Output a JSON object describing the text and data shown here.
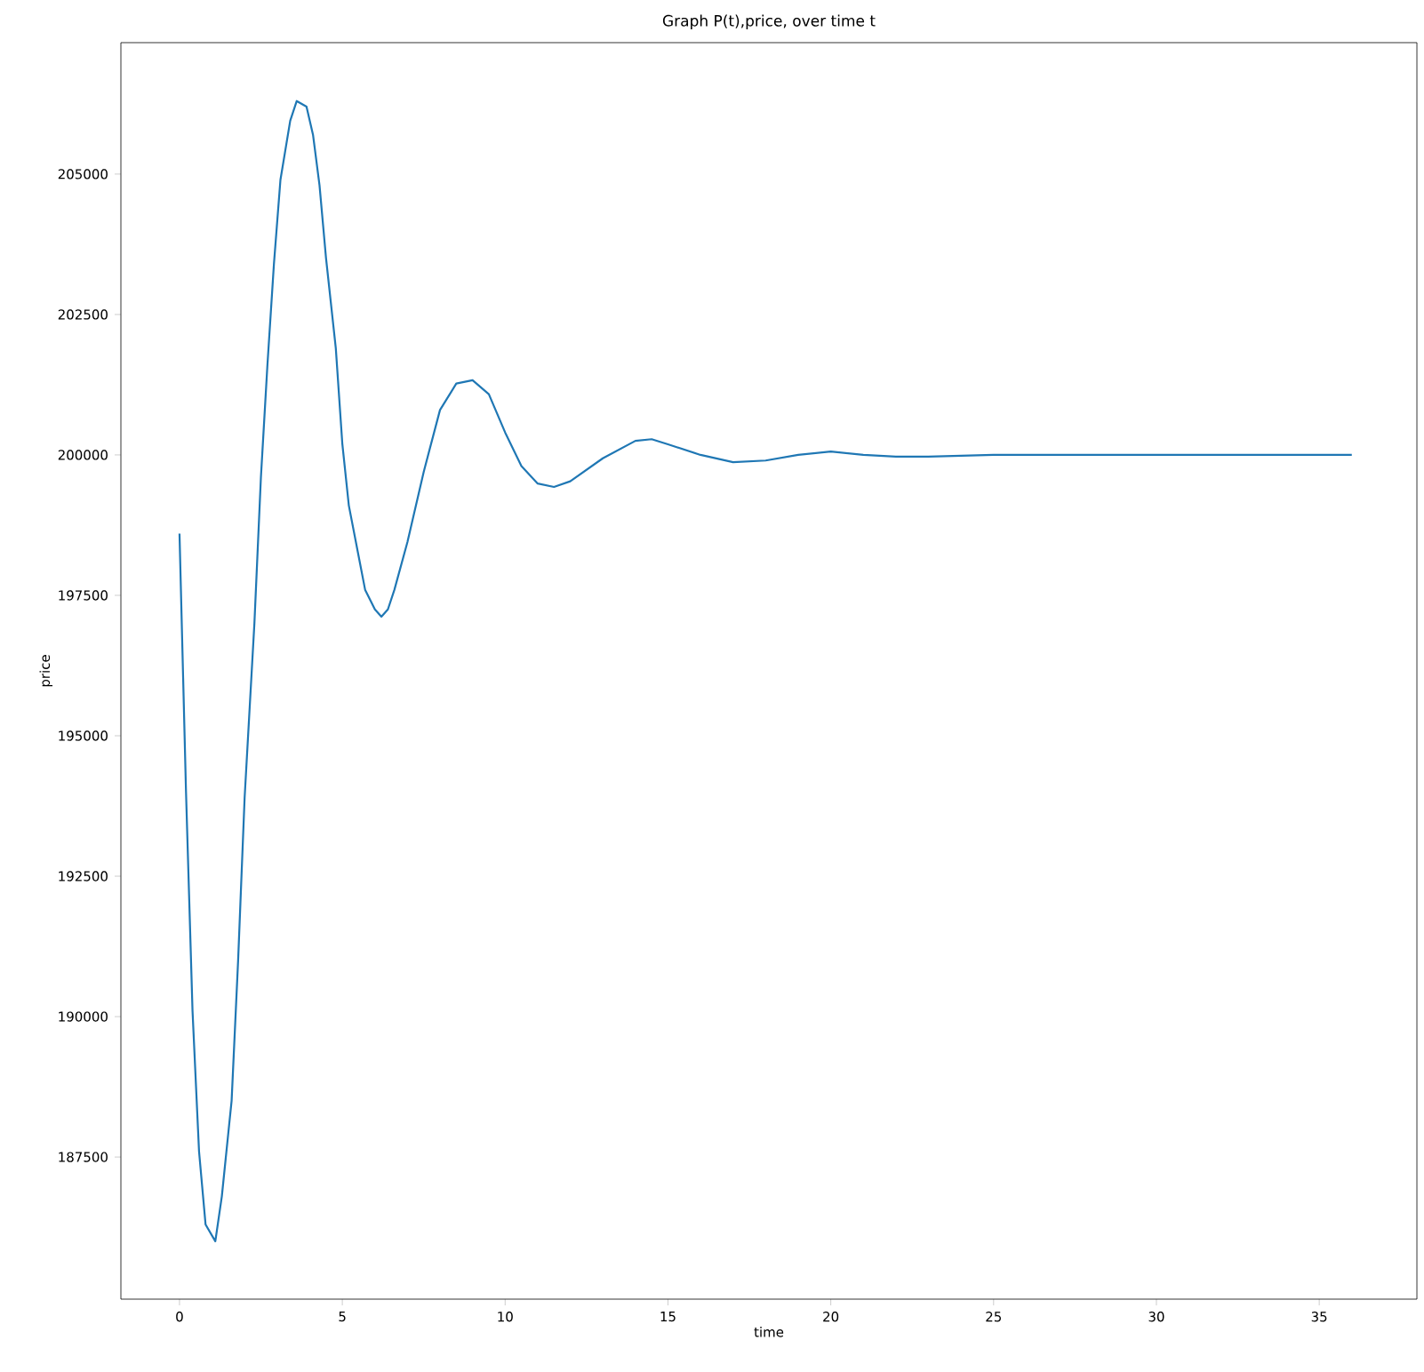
{
  "chart_data": {
    "type": "line",
    "title": "Graph P(t),price, over time t",
    "xlabel": "time",
    "ylabel": "price",
    "x": [
      0,
      0.2,
      0.4,
      0.6,
      0.8,
      1.1,
      1.3,
      1.6,
      1.8,
      2.0,
      2.3,
      2.5,
      2.7,
      2.9,
      3.1,
      3.4,
      3.6,
      3.9,
      4.1,
      4.3,
      4.5,
      4.8,
      5.0,
      5.2,
      5.5,
      5.7,
      6.0,
      6.2,
      6.4,
      6.6,
      7.0,
      7.5,
      8.0,
      8.5,
      9.0,
      9.5,
      10.0,
      10.5,
      11.0,
      11.5,
      12.0,
      13,
      14,
      14.5,
      15,
      16,
      17,
      18,
      19,
      20,
      21,
      22,
      23,
      25,
      27,
      30,
      36
    ],
    "series": [
      {
        "color": "#1f77b4",
        "values": [
          198600,
          194000,
          190100,
          187600,
          186300,
          186000,
          186800,
          188500,
          191000,
          193900,
          197000,
          199600,
          201600,
          203400,
          204900,
          205950,
          206300,
          206200,
          205700,
          204800,
          203500,
          201900,
          200200,
          199100,
          198200,
          197600,
          197250,
          197120,
          197250,
          197600,
          198450,
          199700,
          200800,
          201270,
          201330,
          201080,
          200400,
          199800,
          199490,
          199430,
          199530,
          199940,
          200250,
          200280,
          200190,
          200000,
          199870,
          199900,
          200000,
          200060,
          200000,
          199970,
          199970,
          200000,
          200000,
          200000,
          200000
        ]
      }
    ],
    "xlim": [
      -1.8,
      38
    ],
    "ylim": [
      184970,
      207340
    ],
    "xticks": [
      0,
      5,
      10,
      15,
      20,
      25,
      30,
      35
    ],
    "yticks": [
      187500,
      190000,
      192500,
      195000,
      197500,
      200000,
      202500,
      205000
    ],
    "marker": "none",
    "line_style": "solid"
  }
}
